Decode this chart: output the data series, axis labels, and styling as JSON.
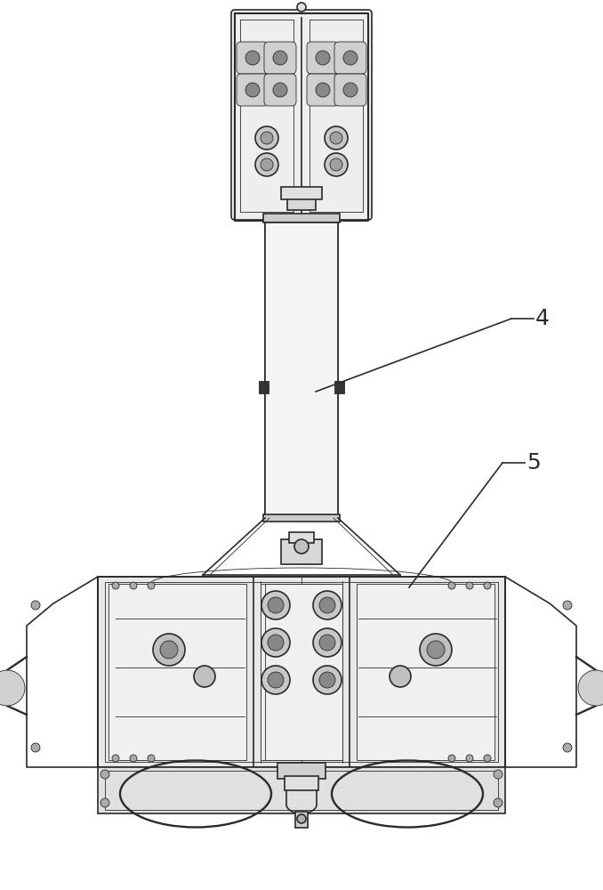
{
  "background_color": "#ffffff",
  "line_color": "#2a2a2a",
  "line_width": 1.2,
  "thin_line": 0.6,
  "label_4": "4",
  "label_5": "5",
  "label_fontsize": 18,
  "fig_width": 6.78,
  "fig_height": 10.0,
  "dpi": 100
}
